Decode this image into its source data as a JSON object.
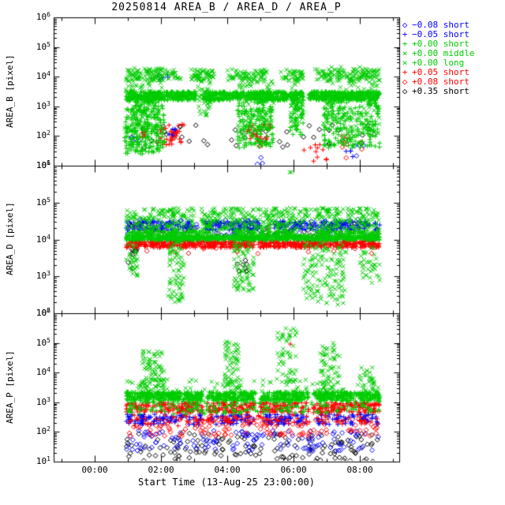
{
  "chart_data": {
    "type": "scatter",
    "title": "20250814 AREA_B / AREA_D / AREA_P",
    "xlabel": "Start Time (13-Aug-25 23:00:00)",
    "x_unit": "hours since 23:00",
    "x_range": [
      -0.24,
      10.19
    ],
    "x_ticks": [
      {
        "t": 1,
        "label": "00:00"
      },
      {
        "t": 3,
        "label": "02:00"
      },
      {
        "t": 5,
        "label": "04:00"
      },
      {
        "t": 7,
        "label": "06:00"
      },
      {
        "t": 9,
        "label": "08:00"
      }
    ],
    "colors": {
      "blue": "#0000ff",
      "green": "#00cc00",
      "red": "#ff0000",
      "black": "#000000"
    },
    "legend": [
      {
        "marker": "diamond",
        "color": "blue",
        "label": "−0.08 short"
      },
      {
        "marker": "plus",
        "color": "blue",
        "label": "−0.05 short"
      },
      {
        "marker": "plus",
        "color": "green",
        "label": "+0.00 short"
      },
      {
        "marker": "cross",
        "color": "green",
        "label": "+0.00 middle"
      },
      {
        "marker": "cross",
        "color": "green",
        "label": "+0.00 long"
      },
      {
        "marker": "plus",
        "color": "red",
        "label": "+0.05 short"
      },
      {
        "marker": "diamond",
        "color": "red",
        "label": "+0.08 short"
      },
      {
        "marker": "diamond",
        "color": "black",
        "label": "+0.35 short"
      }
    ],
    "cluster_format": "li=legend index, t=[tmin,tmax] hours since 23:00, ly=[log10 min,max], n=points, gaps=skipped t ranges",
    "panels": [
      {
        "ylabel": "AREA_B [pixel]",
        "log_range": [
          1,
          6
        ],
        "yticks": [
          6,
          5,
          4,
          3,
          2,
          1
        ],
        "clusters": [
          {
            "li": 7,
            "t": [
              2.0,
              9.5
            ],
            "ly": [
              1.6,
              2.4
            ],
            "n": 45
          },
          {
            "li": 7,
            "t": [
              3.5,
              4.0
            ],
            "ly": [
              3.3,
              3.5
            ],
            "n": 4
          },
          {
            "li": 6,
            "t": [
              3.0,
              3.5
            ],
            "ly": [
              1.9,
              2.2
            ],
            "n": 8
          },
          {
            "li": 6,
            "t": [
              8.4,
              9.1
            ],
            "ly": [
              1.1,
              2.1
            ],
            "n": 10
          },
          {
            "li": 6,
            "t": [
              5.8,
              6.1
            ],
            "ly": [
              1.6,
              1.9
            ],
            "n": 5
          },
          {
            "li": 0,
            "t": [
              2.1,
              2.4
            ],
            "ly": [
              1.8,
              2.1
            ],
            "n": 5
          },
          {
            "li": 0,
            "t": [
              5.9,
              6.2
            ],
            "ly": [
              1.05,
              1.3
            ],
            "n": 3
          },
          {
            "li": 0,
            "t": [
              8.8,
              9.2
            ],
            "ly": [
              1.3,
              1.7
            ],
            "n": 4
          },
          {
            "li": 5,
            "t": [
              2.9,
              3.7
            ],
            "ly": [
              1.7,
              2.4
            ],
            "n": 35
          },
          {
            "li": 5,
            "t": [
              5.6,
              6.3
            ],
            "ly": [
              1.8,
              2.45
            ],
            "n": 30
          },
          {
            "li": 5,
            "t": [
              7.3,
              8.0
            ],
            "ly": [
              1.1,
              1.8
            ],
            "n": 12
          },
          {
            "li": 5,
            "t": [
              2.3,
              2.6
            ],
            "ly": [
              1.9,
              2.2
            ],
            "n": 8
          },
          {
            "li": 1,
            "t": [
              2.9,
              3.2
            ],
            "ly": [
              3.9,
              4.15
            ],
            "n": 6
          },
          {
            "li": 1,
            "t": [
              3.2,
              3.5
            ],
            "ly": [
              2.0,
              2.3
            ],
            "n": 5
          },
          {
            "li": 1,
            "t": [
              8.5,
              8.8
            ],
            "ly": [
              1.2,
              1.5
            ],
            "n": 4
          },
          {
            "li": 3,
            "t": [
              1.9,
              3.1
            ],
            "ly": [
              2.0,
              4.3
            ],
            "n": 150
          },
          {
            "li": 4,
            "t": [
              4.1,
              4.5
            ],
            "ly": [
              2.6,
              4.2
            ],
            "n": 60
          },
          {
            "li": 3,
            "t": [
              5.3,
              6.4
            ],
            "ly": [
              2.2,
              4.2
            ],
            "n": 120
          },
          {
            "li": 4,
            "t": [
              6.9,
              7.3
            ],
            "ly": [
              2.4,
              4.2
            ],
            "n": 50
          },
          {
            "li": 3,
            "t": [
              7.9,
              9.6
            ],
            "ly": [
              2.0,
              4.35
            ],
            "n": 160
          },
          {
            "li": 4,
            "t": [
              1.95,
              9.6
            ],
            "ly": [
              3.85,
              4.25
            ],
            "n": 420,
            "gaps": [
              [
                3.6,
                3.9
              ],
              [
                4.6,
                5.0
              ],
              [
                6.2,
                6.6
              ],
              [
                7.3,
                7.6
              ]
            ]
          },
          {
            "li": 2,
            "t": [
              1.9,
              3.1
            ],
            "ly": [
              1.4,
              3.4
            ],
            "n": 260
          },
          {
            "li": 2,
            "t": [
              5.3,
              6.4
            ],
            "ly": [
              1.6,
              3.4
            ],
            "n": 170
          },
          {
            "li": 2,
            "t": [
              6.9,
              7.3
            ],
            "ly": [
              2.0,
              3.4
            ],
            "n": 60
          },
          {
            "li": 2,
            "t": [
              7.9,
              9.6
            ],
            "ly": [
              1.6,
              3.4
            ],
            "n": 200
          },
          {
            "li": 2,
            "t": [
              1.95,
              9.6
            ],
            "ly": [
              3.2,
              3.5
            ],
            "n": 1100,
            "gaps": [
              [
                4.05,
                4.25
              ],
              [
                7.3,
                7.45
              ]
            ]
          }
        ]
      },
      {
        "ylabel": "AREA_D [pixel]",
        "log_range": [
          2,
          6
        ],
        "yticks": [
          6,
          5,
          4,
          3,
          2
        ],
        "clusters": [
          {
            "li": 7,
            "t": [
              1.95,
              9.6
            ],
            "ly": [
              3.95,
              4.45
            ],
            "n": 110
          },
          {
            "li": 7,
            "t": [
              2.0,
              2.3
            ],
            "ly": [
              3.2,
              3.8
            ],
            "n": 10
          },
          {
            "li": 7,
            "t": [
              5.3,
              5.6
            ],
            "ly": [
              3.1,
              3.6
            ],
            "n": 8
          },
          {
            "li": 6,
            "t": [
              2.0,
              9.5
            ],
            "ly": [
              3.6,
              4.0
            ],
            "n": 30
          },
          {
            "li": 0,
            "t": [
              1.95,
              9.6
            ],
            "ly": [
              4.0,
              4.55
            ],
            "n": 90
          },
          {
            "li": 1,
            "t": [
              1.95,
              9.6
            ],
            "ly": [
              4.25,
              4.5
            ],
            "n": 350,
            "gaps": [
              [
                3.9,
                4.3
              ],
              [
                6.0,
                6.4
              ]
            ]
          },
          {
            "li": 5,
            "t": [
              1.95,
              9.6
            ],
            "ly": [
              3.78,
              3.96
            ],
            "n": 600
          },
          {
            "li": 3,
            "t": [
              3.2,
              3.7
            ],
            "ly": [
              2.3,
              4.2
            ],
            "n": 90
          },
          {
            "li": 4,
            "t": [
              5.2,
              5.8
            ],
            "ly": [
              2.6,
              4.2
            ],
            "n": 80
          },
          {
            "li": 3,
            "t": [
              7.3,
              8.6
            ],
            "ly": [
              2.2,
              4.2
            ],
            "n": 150
          },
          {
            "li": 4,
            "t": [
              1.95,
              2.3
            ],
            "ly": [
              3.0,
              4.2
            ],
            "n": 40
          },
          {
            "li": 3,
            "t": [
              9.0,
              9.6
            ],
            "ly": [
              2.8,
              4.2
            ],
            "n": 50
          },
          {
            "li": 4,
            "t": [
              6.85,
              6.95
            ],
            "ly": [
              5.75,
              5.9
            ],
            "n": 2
          },
          {
            "li": 4,
            "t": [
              1.95,
              9.6
            ],
            "ly": [
              4.25,
              4.85
            ],
            "n": 600,
            "gaps": [
              [
                4.0,
                4.2
              ]
            ]
          },
          {
            "li": 2,
            "t": [
              1.95,
              9.6
            ],
            "ly": [
              4.14,
              4.24
            ],
            "n": 250,
            "gaps": [
              [
                4.5,
                5.2
              ],
              [
                7.0,
                7.6
              ]
            ]
          },
          {
            "li": 2,
            "t": [
              1.95,
              9.6
            ],
            "ly": [
              3.98,
              4.12
            ],
            "n": 800
          }
        ]
      },
      {
        "ylabel": "AREA_P [pixel]",
        "log_range": [
          1,
          6
        ],
        "yticks": [
          6,
          5,
          4,
          3,
          2,
          1
        ],
        "clusters": [
          {
            "li": 7,
            "t": [
              1.95,
              9.6
            ],
            "ly": [
              1.0,
              1.95
            ],
            "n": 150
          },
          {
            "li": 0,
            "t": [
              1.95,
              9.6
            ],
            "ly": [
              1.35,
              2.05
            ],
            "n": 130
          },
          {
            "li": 6,
            "t": [
              1.95,
              9.6
            ],
            "ly": [
              1.85,
              2.5
            ],
            "n": 160
          },
          {
            "li": 1,
            "t": [
              1.95,
              9.6
            ],
            "ly": [
              2.25,
              2.6
            ],
            "n": 280,
            "gaps": [
              [
                4.2,
                4.5
              ],
              [
                5.8,
                6.1
              ],
              [
                7.4,
                7.7
              ]
            ]
          },
          {
            "li": 5,
            "t": [
              1.95,
              9.6
            ],
            "ly": [
              2.2,
              2.6
            ],
            "n": 120
          },
          {
            "li": 5,
            "t": [
              6.85,
              6.95
            ],
            "ly": [
              4.9,
              5.0
            ],
            "n": 1
          },
          {
            "li": 5,
            "t": [
              1.95,
              9.6
            ],
            "ly": [
              2.65,
              3.0
            ],
            "n": 500,
            "gaps": [
              [
                4.25,
                4.4
              ],
              [
                5.85,
                6.0
              ],
              [
                7.45,
                7.6
              ]
            ]
          },
          {
            "li": 3,
            "t": [
              2.4,
              3.1
            ],
            "ly": [
              3.3,
              4.75
            ],
            "n": 90
          },
          {
            "li": 4,
            "t": [
              4.9,
              5.35
            ],
            "ly": [
              3.3,
              5.05
            ],
            "n": 70
          },
          {
            "li": 3,
            "t": [
              6.5,
              7.1
            ],
            "ly": [
              3.3,
              5.5
            ],
            "n": 60
          },
          {
            "li": 4,
            "t": [
              7.8,
              8.4
            ],
            "ly": [
              3.3,
              5.0
            ],
            "n": 70
          },
          {
            "li": 3,
            "t": [
              9.0,
              9.5
            ],
            "ly": [
              3.3,
              4.3
            ],
            "n": 30
          },
          {
            "li": 4,
            "t": [
              1.95,
              9.6
            ],
            "ly": [
              3.3,
              3.8
            ],
            "n": 80
          },
          {
            "li": 2,
            "t": [
              1.95,
              9.6
            ],
            "ly": [
              2.6,
              3.05
            ],
            "n": 200
          },
          {
            "li": 2,
            "t": [
              1.95,
              9.6
            ],
            "ly": [
              3.05,
              3.35
            ],
            "n": 900,
            "gaps": [
              [
                4.25,
                4.4
              ],
              [
                5.85,
                6.0
              ],
              [
                7.45,
                7.6
              ]
            ]
          }
        ]
      }
    ]
  }
}
